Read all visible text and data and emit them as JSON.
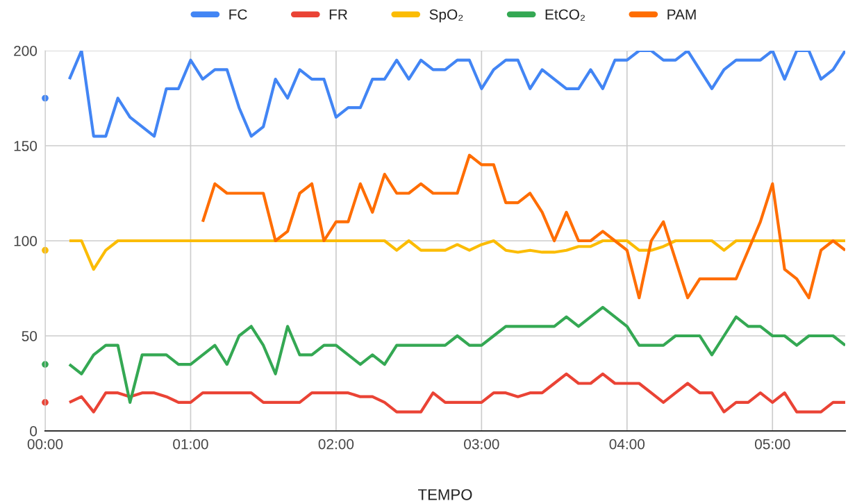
{
  "chart_data": {
    "type": "line",
    "xlabel": "TEMPO",
    "x": [
      0,
      0.0833,
      0.1667,
      0.25,
      0.3333,
      0.4167,
      0.5,
      0.5833,
      0.6667,
      0.75,
      0.8333,
      0.9167,
      1,
      1.0833,
      1.1667,
      1.25,
      1.3333,
      1.4167,
      1.5,
      1.5833,
      1.6667,
      1.75,
      1.8333,
      1.9167,
      2,
      2.0833,
      2.1667,
      2.25,
      2.3333,
      2.4167,
      2.5,
      2.5833,
      2.6667,
      2.75,
      2.8333,
      2.9167,
      3,
      3.0833,
      3.1667,
      3.25,
      3.3333,
      3.4167,
      3.5,
      3.5833,
      3.6667,
      3.75,
      3.8333,
      3.9167,
      4,
      4.0833,
      4.1667,
      4.25,
      4.3333,
      4.4167,
      4.5,
      4.5833,
      4.6667,
      4.75,
      4.8333,
      4.9167,
      5,
      5.0833,
      5.1667,
      5.25,
      5.3333,
      5.4167,
      5.5
    ],
    "series": [
      {
        "name": "FC",
        "color": "#4285f4",
        "values": [
          175,
          null,
          185,
          200,
          155,
          155,
          175,
          165,
          160,
          155,
          180,
          180,
          195,
          185,
          190,
          190,
          170,
          155,
          160,
          185,
          175,
          190,
          185,
          185,
          165,
          170,
          170,
          185,
          185,
          195,
          185,
          195,
          190,
          190,
          195,
          195,
          180,
          190,
          195,
          195,
          180,
          190,
          185,
          180,
          180,
          190,
          180,
          195,
          195,
          200,
          200,
          195,
          195,
          200,
          190,
          180,
          190,
          195,
          195,
          195,
          200,
          185,
          200,
          200,
          185,
          190,
          200
        ]
      },
      {
        "name": "FR",
        "color": "#ea4335",
        "values": [
          15,
          null,
          15,
          18,
          10,
          20,
          20,
          18,
          20,
          20,
          18,
          15,
          15,
          20,
          20,
          20,
          20,
          20,
          15,
          15,
          15,
          15,
          20,
          20,
          20,
          20,
          18,
          18,
          15,
          10,
          10,
          10,
          20,
          15,
          15,
          15,
          15,
          20,
          20,
          18,
          20,
          20,
          25,
          30,
          25,
          25,
          30,
          25,
          25,
          25,
          20,
          15,
          20,
          25,
          20,
          20,
          10,
          15,
          15,
          20,
          15,
          20,
          10,
          10,
          10,
          15,
          15
        ]
      },
      {
        "name": "SpO₂",
        "color": "#fbbc04",
        "values": [
          95,
          null,
          100,
          100,
          85,
          95,
          100,
          100,
          100,
          100,
          100,
          100,
          100,
          100,
          100,
          100,
          100,
          100,
          100,
          100,
          100,
          100,
          100,
          100,
          100,
          100,
          100,
          100,
          100,
          95,
          100,
          95,
          95,
          95,
          98,
          95,
          98,
          100,
          95,
          94,
          95,
          94,
          94,
          95,
          97,
          97,
          100,
          100,
          100,
          95,
          95,
          97,
          100,
          100,
          100,
          100,
          95,
          100,
          100,
          100,
          100,
          100,
          100,
          100,
          100,
          100,
          100
        ]
      },
      {
        "name": "EtCO₂",
        "color": "#34a853",
        "values": [
          35,
          null,
          35,
          30,
          40,
          45,
          45,
          15,
          40,
          40,
          40,
          35,
          35,
          40,
          45,
          35,
          50,
          55,
          45,
          30,
          55,
          40,
          40,
          45,
          45,
          40,
          35,
          40,
          35,
          45,
          45,
          45,
          45,
          45,
          50,
          45,
          45,
          50,
          55,
          55,
          55,
          55,
          55,
          60,
          55,
          60,
          65,
          60,
          55,
          45,
          45,
          45,
          50,
          50,
          50,
          40,
          50,
          60,
          55,
          55,
          50,
          50,
          45,
          50,
          50,
          50,
          45
        ]
      },
      {
        "name": "PAM",
        "color": "#ff6d01",
        "values": [
          null,
          null,
          null,
          null,
          null,
          null,
          null,
          null,
          null,
          null,
          null,
          null,
          null,
          110,
          130,
          125,
          125,
          125,
          125,
          100,
          105,
          125,
          130,
          100,
          110,
          110,
          130,
          115,
          135,
          125,
          125,
          130,
          125,
          125,
          125,
          145,
          140,
          140,
          120,
          120,
          125,
          115,
          100,
          115,
          100,
          100,
          105,
          100,
          95,
          70,
          100,
          110,
          90,
          70,
          80,
          80,
          80,
          80,
          95,
          110,
          130,
          85,
          80,
          70,
          95,
          100,
          95
        ]
      }
    ],
    "xlim": [
      0,
      5.5
    ],
    "xticks": [
      {
        "value": 0,
        "label": "00:00"
      },
      {
        "value": 1,
        "label": "01:00"
      },
      {
        "value": 2,
        "label": "02:00"
      },
      {
        "value": 3,
        "label": "03:00"
      },
      {
        "value": 4,
        "label": "04:00"
      },
      {
        "value": 5,
        "label": "05:00"
      }
    ],
    "ylim": [
      0,
      200
    ],
    "yticks": [
      0,
      50,
      100,
      150,
      200
    ],
    "grid": true,
    "legend": "top"
  }
}
